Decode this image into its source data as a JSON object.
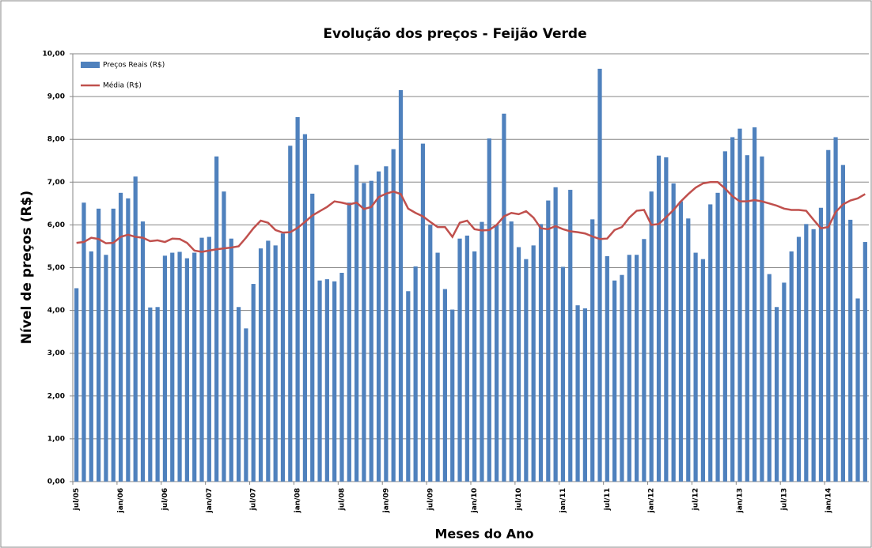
{
  "chart_data": {
    "type": "bar",
    "title": "Evolução dos preços - Feijão Verde",
    "x_label": "Meses do Ano",
    "y_label": "Nível de preços (R$)",
    "categories": [
      "jul/05",
      null,
      null,
      null,
      null,
      null,
      "jan/06",
      null,
      null,
      null,
      null,
      null,
      "jul/06",
      null,
      null,
      null,
      null,
      null,
      "jan/07",
      null,
      null,
      null,
      null,
      null,
      "jul/07",
      null,
      null,
      null,
      null,
      null,
      "jan/08",
      null,
      null,
      null,
      null,
      null,
      "jul/08",
      null,
      null,
      null,
      null,
      null,
      "jan/09",
      null,
      null,
      null,
      null,
      null,
      "jul/09",
      null,
      null,
      null,
      null,
      null,
      "jan/10",
      null,
      null,
      null,
      null,
      null,
      "jul/10",
      null,
      null,
      null,
      null,
      null,
      "jan/11",
      null,
      null,
      null,
      null,
      null,
      "jul/11",
      null,
      null,
      null,
      null,
      null,
      "jan/12",
      null,
      null,
      null,
      null,
      null,
      "jul/12",
      null,
      null,
      null,
      null,
      null,
      "jan/13",
      null,
      null,
      null,
      null,
      null,
      "jul/13",
      null,
      null,
      null,
      null,
      null,
      "jan/14",
      null,
      null,
      null,
      null,
      null
    ],
    "series": [
      {
        "name": "Preços Reais (R$)",
        "type": "bar",
        "color": "#4f81bd",
        "values": [
          4.52,
          6.52,
          5.38,
          6.38,
          5.3,
          6.38,
          6.75,
          6.62,
          7.13,
          6.08,
          4.07,
          4.08,
          5.28,
          5.35,
          5.37,
          5.22,
          5.35,
          5.7,
          5.72,
          7.6,
          6.78,
          5.68,
          4.08,
          3.58,
          4.62,
          5.45,
          5.63,
          5.52,
          5.8,
          7.85,
          8.52,
          8.12,
          6.73,
          4.7,
          4.73,
          4.68,
          4.88,
          6.52,
          7.4,
          6.98,
          7.03,
          7.25,
          7.37,
          7.77,
          9.15,
          4.45,
          5.03,
          7.9,
          6.0,
          5.35,
          4.5,
          4.02,
          5.68,
          5.75,
          5.38,
          6.07,
          8.02,
          6.0,
          8.6,
          6.08,
          5.48,
          5.2,
          5.52,
          6.02,
          6.57,
          6.88,
          5.02,
          6.82,
          4.12,
          4.05,
          6.13,
          9.65,
          5.27,
          4.7,
          4.83,
          5.3,
          5.3,
          5.67,
          6.78,
          7.62,
          7.58,
          6.97,
          6.55,
          6.15,
          5.35,
          5.2,
          6.48,
          6.75,
          7.72,
          8.05,
          8.25,
          7.63,
          8.28,
          7.6,
          4.85,
          4.08,
          4.65,
          5.38,
          5.72,
          6.02,
          5.9,
          6.4,
          7.75,
          8.05,
          7.4,
          6.12,
          4.28,
          5.6
        ]
      },
      {
        "name": "Média (R$)",
        "type": "line",
        "color": "#c0504d",
        "values": [
          5.58,
          5.6,
          5.7,
          5.67,
          5.57,
          5.58,
          5.72,
          5.77,
          5.72,
          5.7,
          5.62,
          5.64,
          5.6,
          5.68,
          5.67,
          5.58,
          5.4,
          5.37,
          5.4,
          5.43,
          5.45,
          5.47,
          5.5,
          5.7,
          5.92,
          6.1,
          6.05,
          5.88,
          5.82,
          5.83,
          5.93,
          6.07,
          6.22,
          6.32,
          6.42,
          6.55,
          6.52,
          6.48,
          6.52,
          6.37,
          6.42,
          6.65,
          6.73,
          6.78,
          6.72,
          6.38,
          6.28,
          6.2,
          6.07,
          5.95,
          5.95,
          5.72,
          6.05,
          6.1,
          5.9,
          5.87,
          5.88,
          6.0,
          6.2,
          6.28,
          6.25,
          6.32,
          6.17,
          5.92,
          5.9,
          5.97,
          5.9,
          5.85,
          5.83,
          5.8,
          5.73,
          5.67,
          5.68,
          5.88,
          5.95,
          6.17,
          6.33,
          6.35,
          6.0,
          6.02,
          6.18,
          6.35,
          6.55,
          6.72,
          6.87,
          6.97,
          7.0,
          7.0,
          6.85,
          6.67,
          6.55,
          6.55,
          6.58,
          6.55,
          6.5,
          6.45,
          6.38,
          6.35,
          6.35,
          6.33,
          6.12,
          5.92,
          5.95,
          6.3,
          6.48,
          6.57,
          6.62,
          6.72
        ]
      }
    ],
    "ylim": [
      0,
      10
    ],
    "yticks": [
      {
        "value": 0,
        "label": "0,00"
      },
      {
        "value": 1,
        "label": "1,00"
      },
      {
        "value": 2,
        "label": "2,00"
      },
      {
        "value": 3,
        "label": "3,00"
      },
      {
        "value": 4,
        "label": "4,00"
      },
      {
        "value": 5,
        "label": "5,00"
      },
      {
        "value": 6,
        "label": "6,00"
      },
      {
        "value": 7,
        "label": "7,00"
      },
      {
        "value": 8,
        "label": "8,00"
      },
      {
        "value": 9,
        "label": "9,00"
      },
      {
        "value": 10,
        "label": "10,00"
      }
    ],
    "grid": true,
    "legend": "top-left"
  }
}
